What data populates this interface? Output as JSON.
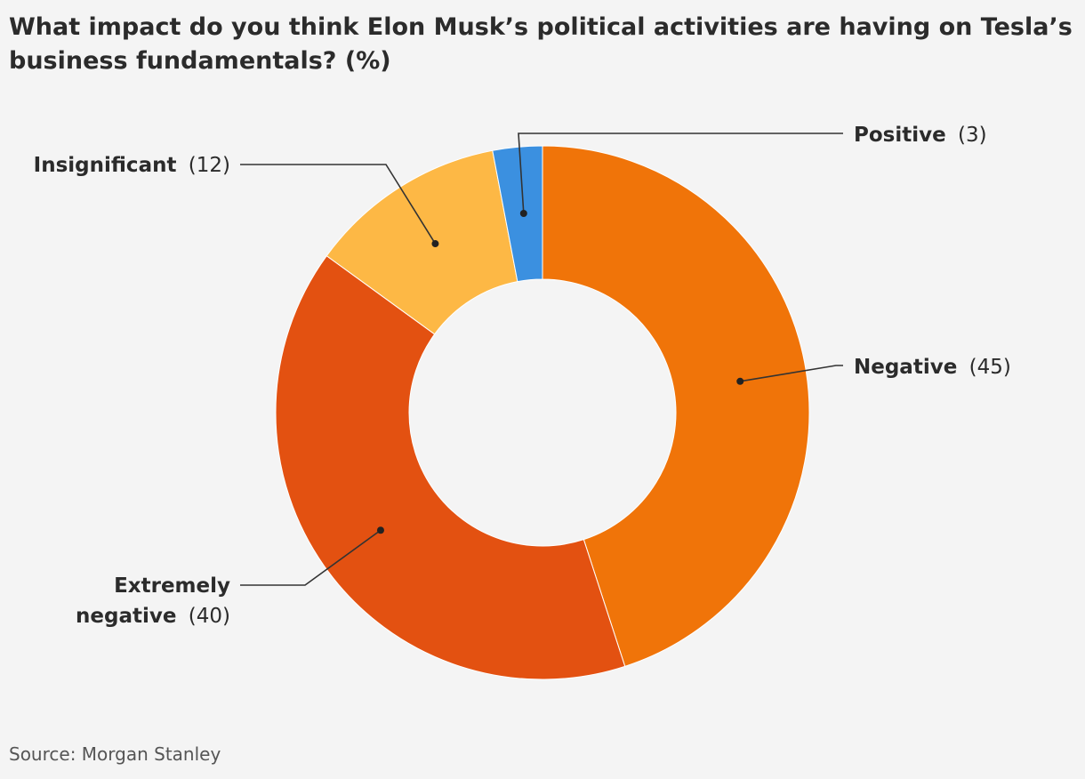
{
  "chart_data": {
    "type": "pie",
    "title": "What impact do you think Elon Musk’s political activities are having on Tesla’s business fundamentals? (%)",
    "source": "Source: Morgan Stanley",
    "slices": [
      {
        "label": "Negative",
        "value_text": "(45)",
        "value": 45,
        "color": "#f07409"
      },
      {
        "label": "Extremely",
        "label2": "negative",
        "value_text": "(40)",
        "value": 40,
        "color": "#e35111"
      },
      {
        "label": "Insignificant",
        "value_text": "(12)",
        "value": 12,
        "color": "#fdb845"
      },
      {
        "label": "Positive",
        "value_text": "(3)",
        "value": 3,
        "color": "#3b90e0"
      }
    ]
  }
}
